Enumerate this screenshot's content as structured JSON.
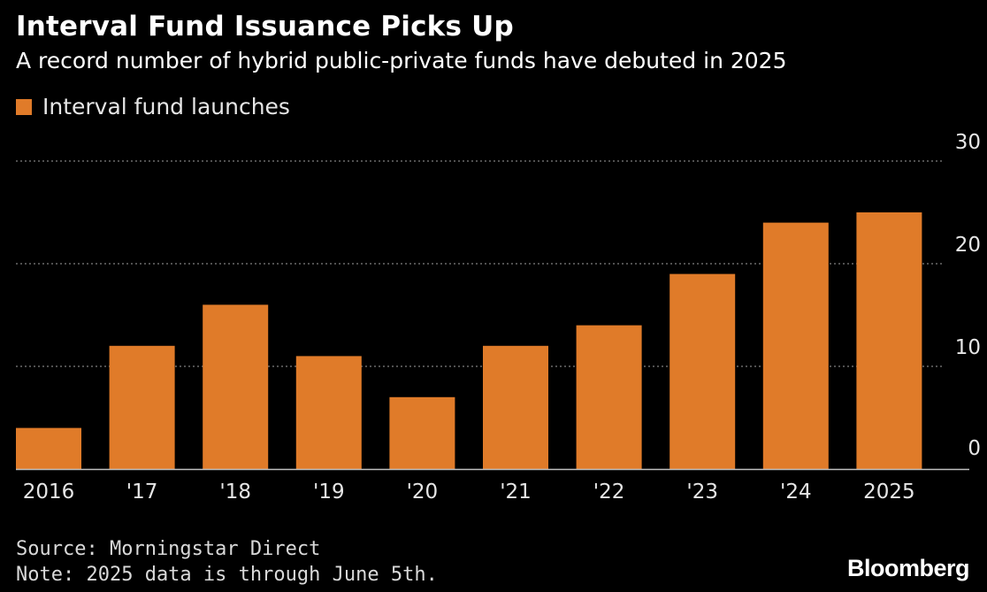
{
  "header": {
    "title": "Interval Fund Issuance Picks Up",
    "subtitle": "A record number of hybrid public-private funds have debuted in 2025"
  },
  "legend": {
    "label": "Interval fund launches"
  },
  "footer": {
    "source": "Source: Morningstar Direct",
    "note": "Note: 2025 data is through June 5th.",
    "brand": "Bloomberg"
  },
  "colors": {
    "background": "#000000",
    "bar": "#e07b29",
    "grid": "#808080",
    "text": "#ffffff",
    "tick": "#e6e6e6"
  },
  "chart_data": {
    "type": "bar",
    "title": "Interval Fund Issuance Picks Up",
    "subtitle": "A record number of hybrid public-private funds have debuted in 2025",
    "categories": [
      "2016",
      "'17",
      "'18",
      "'19",
      "'20",
      "'21",
      "'22",
      "'23",
      "'24",
      "2025"
    ],
    "series": [
      {
        "name": "Interval fund launches",
        "values": [
          4,
          12,
          16,
          11,
          7,
          12,
          14,
          19,
          24,
          25
        ]
      }
    ],
    "xlabel": "",
    "ylabel": "",
    "ylim": [
      0,
      30
    ],
    "yticks": [
      0,
      10,
      20,
      30
    ],
    "grid": true,
    "grid_style": "dotted",
    "y_axis_side": "right",
    "legend_position": "top-left"
  }
}
